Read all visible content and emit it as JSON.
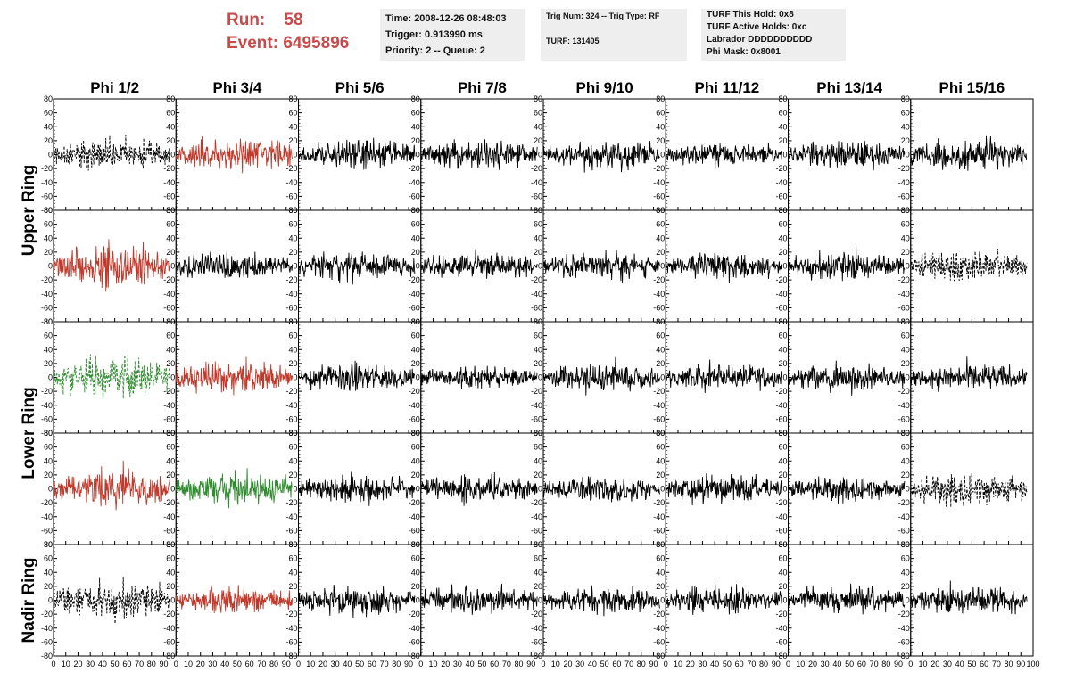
{
  "header": {
    "run_label": "Run:",
    "run_value": "58",
    "event_label": "Event:",
    "event_value": "6495896",
    "time_line": "Time: 2008-12-26 08:48:03",
    "trigger_line": "Trigger: 0.913990 ms",
    "priority_line": "Priority: 2 -- Queue: 2",
    "trig_num_line": "Trig Num: 324 -- Trig Type: RF",
    "turf_line": "TURF: 131405",
    "turf_hold_line": "TURF This Hold: 0x8",
    "turf_active_line": "TURF Active Holds: 0xc",
    "labrador_line": "Labrador DDDDDDDDDD",
    "phi_mask_line": "Phi Mask: 0x8001"
  },
  "colors": {
    "run_text": "#c84a4a",
    "trace_black": "#000000",
    "trace_red": "#c0392b",
    "trace_green": "#2e8b2e",
    "info_bg": "#eeeeee"
  },
  "chart_data": {
    "type": "line",
    "columns": [
      "Phi 1/2",
      "Phi 3/4",
      "Phi 5/6",
      "Phi 7/8",
      "Phi 9/10",
      "Phi 11/12",
      "Phi 13/14",
      "Phi 15/16"
    ],
    "ring_labels": [
      {
        "text": "Upper Ring",
        "spans_rows": [
          0,
          1
        ]
      },
      {
        "text": "Lower Ring",
        "spans_rows": [
          2,
          3
        ]
      },
      {
        "text": "Nadir Ring",
        "spans_rows": [
          4,
          4
        ]
      }
    ],
    "xlim": [
      0,
      100
    ],
    "ylim": [
      -80,
      80
    ],
    "x_ticks": [
      0,
      10,
      20,
      30,
      40,
      50,
      60,
      70,
      80,
      90,
      100
    ],
    "x_tick_labels": [
      "0",
      "10",
      "20",
      "30",
      "40",
      "50",
      "60",
      "70",
      "80",
      "90",
      "100"
    ],
    "y_ticks": [
      -80,
      -60,
      -40,
      -20,
      0,
      20,
      40,
      60,
      80
    ],
    "y_tick_labels": [
      "-80",
      "-60",
      "-40",
      "-20",
      "0",
      "20",
      "40",
      "60",
      "80"
    ],
    "panels": [
      [
        {
          "style": "black-dashed",
          "amp": 14
        },
        {
          "style": "red",
          "amp": 14
        },
        {
          "style": "black",
          "amp": 12
        },
        {
          "style": "black",
          "amp": 12
        },
        {
          "style": "black",
          "amp": 12
        },
        {
          "style": "black",
          "amp": 10
        },
        {
          "style": "black",
          "amp": 12
        },
        {
          "style": "black",
          "amp": 14
        }
      ],
      [
        {
          "style": "red",
          "amp": 18
        },
        {
          "style": "black",
          "amp": 12
        },
        {
          "style": "black",
          "amp": 12
        },
        {
          "style": "black",
          "amp": 12
        },
        {
          "style": "black",
          "amp": 12
        },
        {
          "style": "black",
          "amp": 12
        },
        {
          "style": "black",
          "amp": 12
        },
        {
          "style": "black-dashed",
          "amp": 14
        }
      ],
      [
        {
          "style": "green-dashed",
          "amp": 18
        },
        {
          "style": "red",
          "amp": 14
        },
        {
          "style": "black",
          "amp": 12
        },
        {
          "style": "black",
          "amp": 10
        },
        {
          "style": "black",
          "amp": 12
        },
        {
          "style": "black",
          "amp": 12
        },
        {
          "style": "black",
          "amp": 12
        },
        {
          "style": "black",
          "amp": 12
        }
      ],
      [
        {
          "style": "red",
          "amp": 16
        },
        {
          "style": "green",
          "amp": 14
        },
        {
          "style": "black",
          "amp": 12
        },
        {
          "style": "black",
          "amp": 12
        },
        {
          "style": "black",
          "amp": 11
        },
        {
          "style": "black",
          "amp": 12
        },
        {
          "style": "black",
          "amp": 12
        },
        {
          "style": "black-dashed",
          "amp": 16
        }
      ],
      [
        {
          "style": "black-dashed",
          "amp": 16
        },
        {
          "style": "red",
          "amp": 12
        },
        {
          "style": "black",
          "amp": 12
        },
        {
          "style": "black",
          "amp": 12
        },
        {
          "style": "black",
          "amp": 12
        },
        {
          "style": "black",
          "amp": 12
        },
        {
          "style": "black",
          "amp": 12
        },
        {
          "style": "black",
          "amp": 12
        }
      ]
    ]
  }
}
